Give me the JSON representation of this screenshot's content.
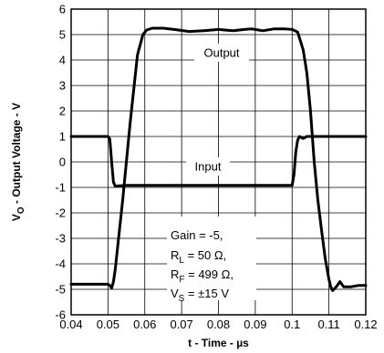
{
  "chart_data": {
    "type": "line",
    "title": "",
    "xlabel": "t - Time - µs",
    "ylabel": "V_O - Output Voltage - V",
    "xlim": [
      0.04,
      0.12
    ],
    "ylim": [
      -6,
      6
    ],
    "grid": true,
    "x_ticks": [
      "0.04",
      "0.05",
      "0.06",
      "0.07",
      "0.08",
      "0.09",
      "0.1",
      "0.11",
      "0.12"
    ],
    "y_ticks": [
      "-6",
      "-5",
      "-4",
      "-3",
      "-2",
      "-1",
      "0",
      "1",
      "2",
      "3",
      "4",
      "5",
      "6"
    ],
    "series": [
      {
        "name": "Output",
        "x": [
          0.04,
          0.05,
          0.0505,
          0.051,
          0.0515,
          0.052,
          0.054,
          0.056,
          0.058,
          0.0595,
          0.0605,
          0.062,
          0.065,
          0.068,
          0.072,
          0.076,
          0.08,
          0.084,
          0.087,
          0.089,
          0.09,
          0.092,
          0.095,
          0.098,
          0.1,
          0.1015,
          0.103,
          0.104,
          0.105,
          0.106,
          0.107,
          0.108,
          0.109,
          0.11,
          0.1105,
          0.111,
          0.112,
          0.113,
          0.114,
          0.116,
          0.118,
          0.12
        ],
        "y": [
          -4.8,
          -4.8,
          -4.85,
          -4.95,
          -4.7,
          -4.2,
          -1.5,
          1.5,
          4.2,
          5.0,
          5.18,
          5.25,
          5.25,
          5.2,
          5.12,
          5.15,
          5.2,
          5.15,
          5.2,
          5.22,
          5.2,
          5.15,
          5.22,
          5.22,
          5.2,
          5.1,
          4.4,
          3.5,
          2.0,
          0.0,
          -1.5,
          -2.7,
          -3.8,
          -4.6,
          -4.9,
          -5.05,
          -4.9,
          -4.7,
          -4.9,
          -4.9,
          -4.85,
          -4.85
        ]
      },
      {
        "name": "Input",
        "x": [
          0.04,
          0.05,
          0.0505,
          0.051,
          0.0515,
          0.052,
          0.055,
          0.07,
          0.085,
          0.1,
          0.1005,
          0.101,
          0.1015,
          0.102,
          0.103,
          0.104,
          0.105,
          0.12
        ],
        "y": [
          1.0,
          1.0,
          0.9,
          0.0,
          -0.8,
          -0.95,
          -0.92,
          -0.92,
          -0.92,
          -0.92,
          -0.5,
          0.4,
          0.85,
          1.0,
          0.92,
          1.0,
          1.0,
          1.0
        ]
      }
    ],
    "annotations": {
      "output_label": "Output",
      "input_label": "Input",
      "params": {
        "gain": "Gain = -5,",
        "rl_main": "R",
        "rl_sub": "L",
        "rl_rest": " = 50 Ω,",
        "rf_main": "R",
        "rf_sub": "F",
        "rf_rest": " = 499 Ω,",
        "vs_main": "V",
        "vs_sub": "S",
        "vs_rest": " = ±15 V"
      }
    },
    "axis_titles": {
      "y_main": "V",
      "y_sub": "O",
      "y_rest": " - Output Voltage - V",
      "x_text": "t - Time - µs"
    }
  }
}
